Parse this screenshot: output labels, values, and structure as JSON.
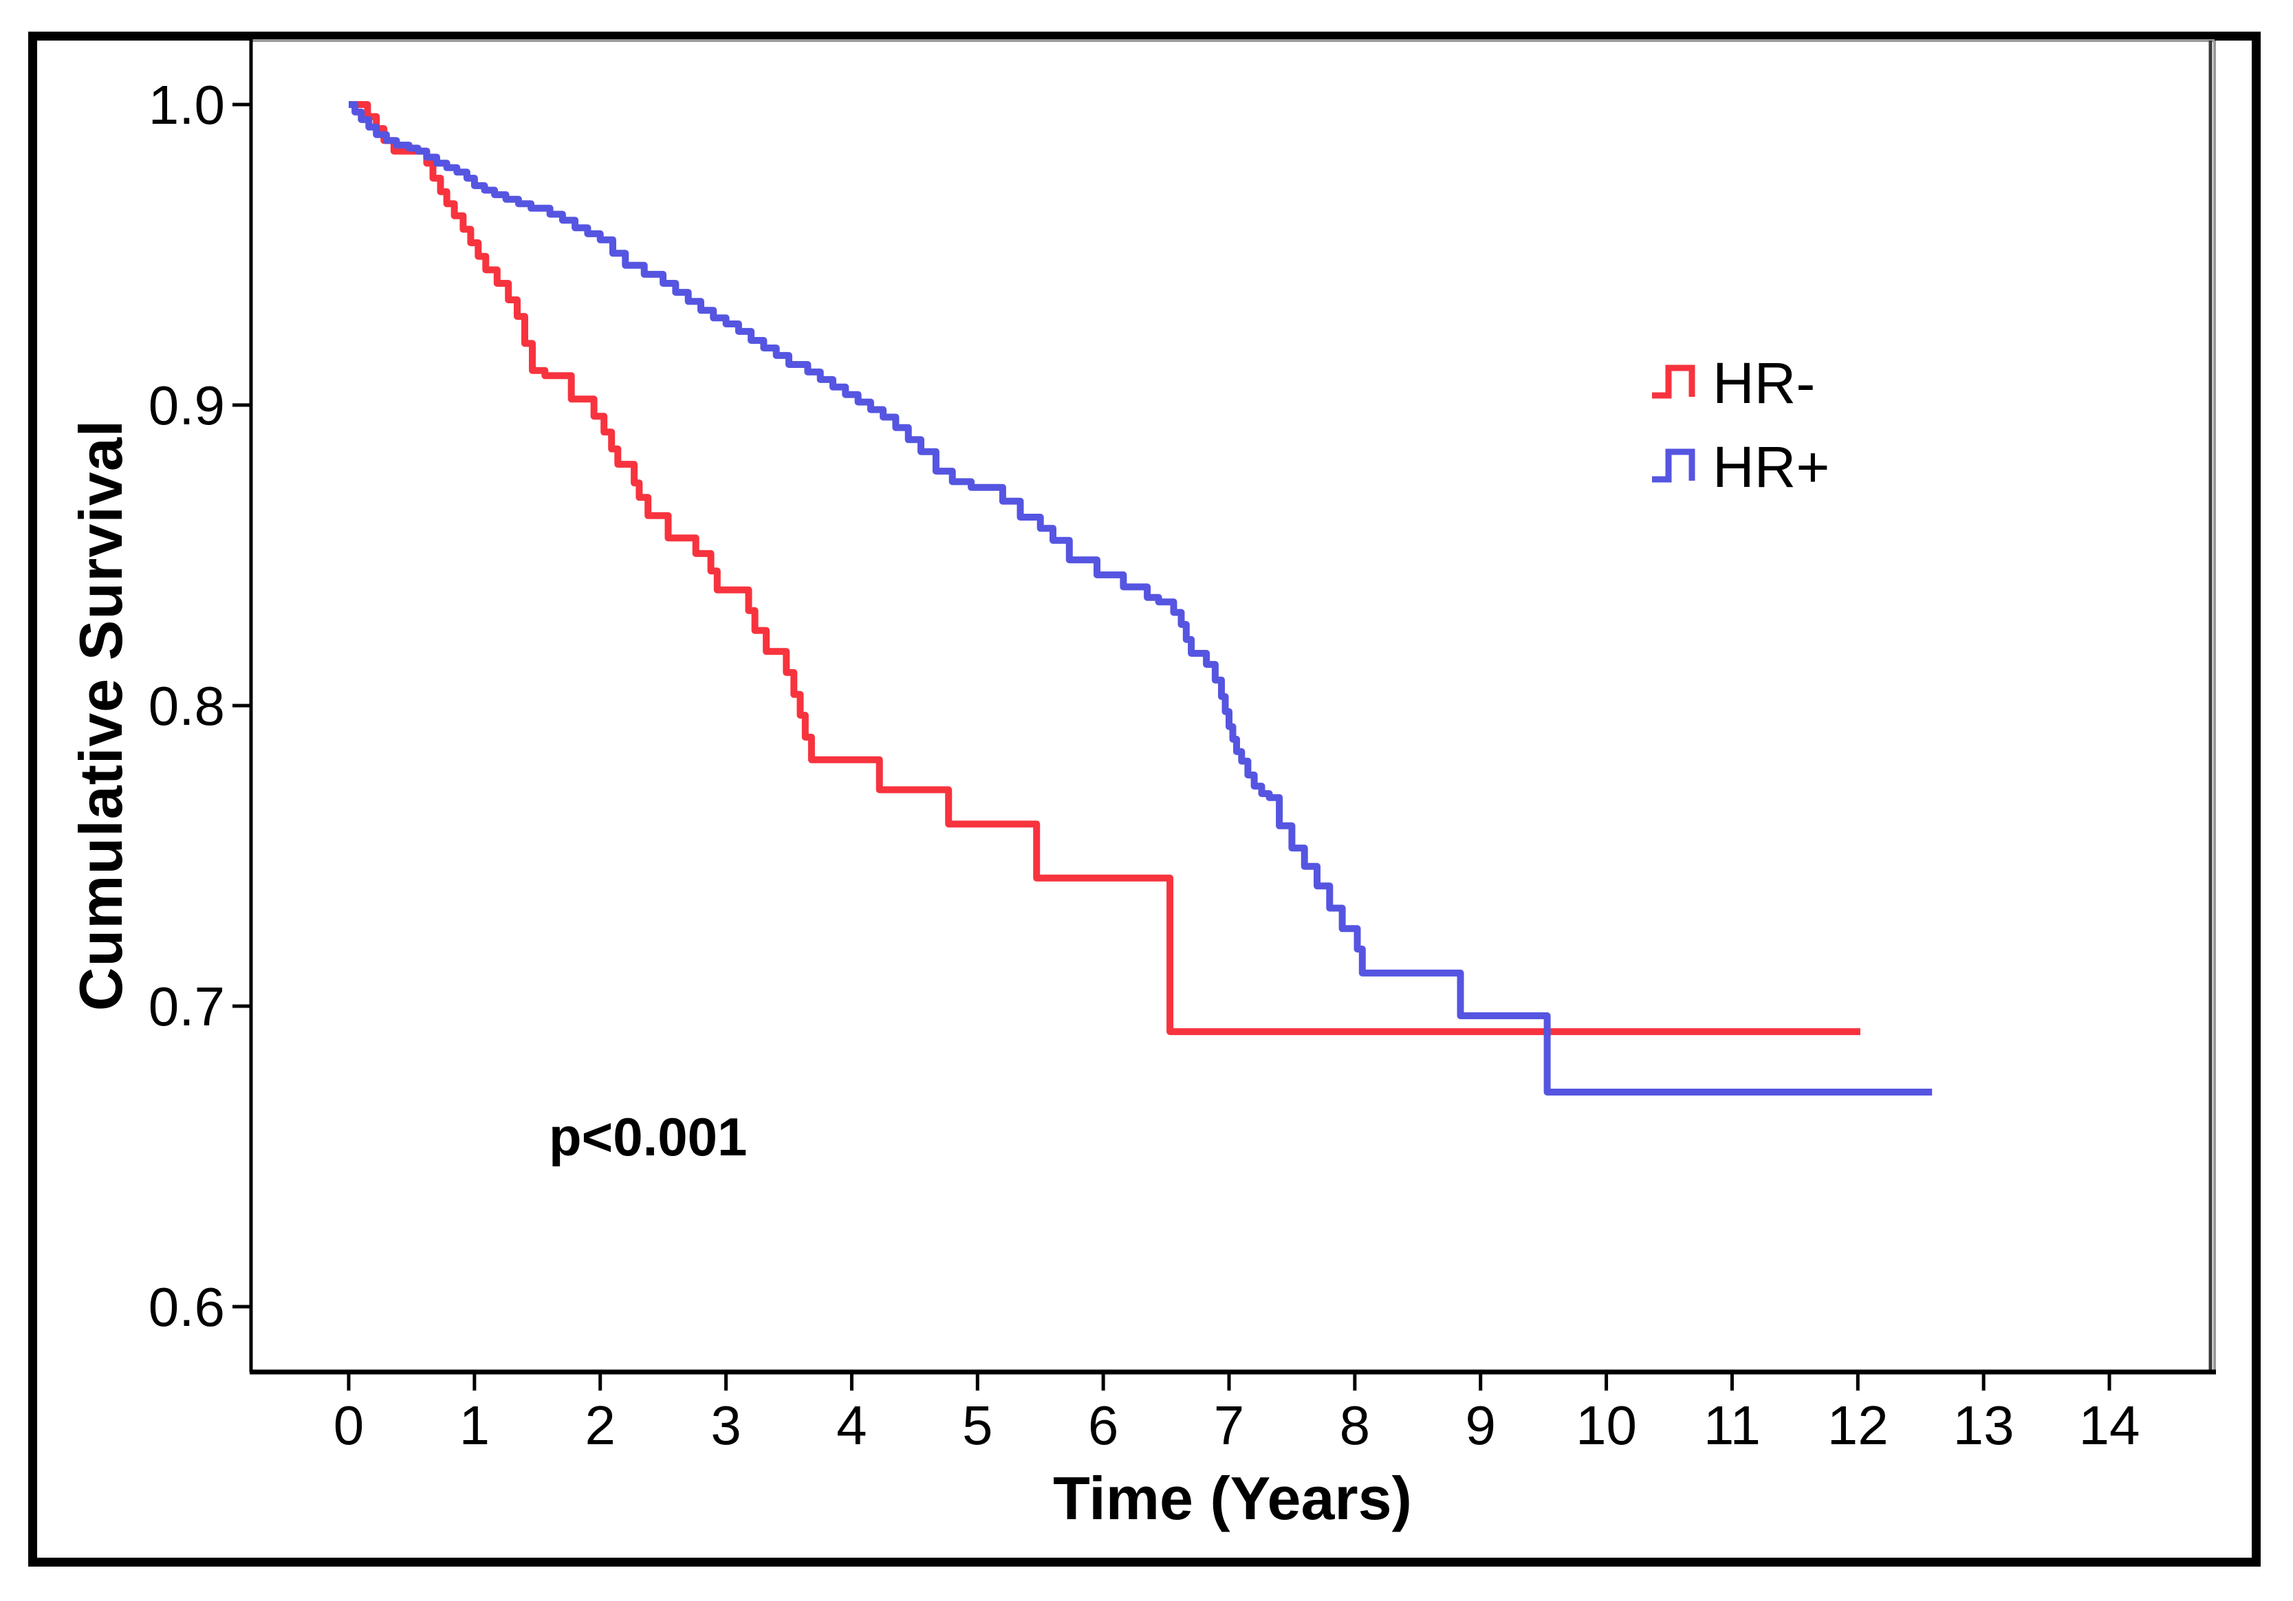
{
  "figure": {
    "background_color": "#ffffff",
    "border_color": "#000000"
  },
  "chart_data": {
    "type": "line",
    "subtype": "kaplan_meier_step",
    "title": "",
    "xlabel": "Time (Years)",
    "ylabel": "Cumulative Survival",
    "annotation": "p<0.001",
    "grid": false,
    "xlim": [
      -0.78,
      14.85
    ],
    "ylim": [
      0.578,
      1.022
    ],
    "x_ticks": [
      "0",
      "1",
      "2",
      "3",
      "4",
      "5",
      "6",
      "7",
      "8",
      "9",
      "10",
      "11",
      "12",
      "13",
      "14"
    ],
    "x_tick_values": [
      0,
      1,
      2,
      3,
      4,
      5,
      6,
      7,
      8,
      9,
      10,
      11,
      12,
      13,
      14
    ],
    "y_ticks": [
      "1.0",
      "0.9",
      "0.8",
      "0.7",
      "0.6"
    ],
    "y_tick_values": [
      1.0,
      0.9,
      0.8,
      0.7,
      0.6
    ],
    "axis_color": "#000000",
    "frame_top_color": "#999999",
    "frame_right_color": "#3a3a3a",
    "legend": {
      "position": "upper right",
      "entries": [
        {
          "label": "HR-",
          "color": "#F7333E"
        },
        {
          "label": "HR+",
          "color": "#5555E1"
        }
      ]
    },
    "series": [
      {
        "name": "HR-",
        "color": "#F7333E",
        "points": [
          [
            0,
            1.0
          ],
          [
            0.15,
            0.996
          ],
          [
            0.22,
            0.992
          ],
          [
            0.28,
            0.988
          ],
          [
            0.36,
            0.9845
          ],
          [
            0.62,
            0.9805
          ],
          [
            0.67,
            0.9755
          ],
          [
            0.73,
            0.971
          ],
          [
            0.78,
            0.967
          ],
          [
            0.84,
            0.963
          ],
          [
            0.91,
            0.9585
          ],
          [
            0.97,
            0.954
          ],
          [
            1.03,
            0.9495
          ],
          [
            1.09,
            0.945
          ],
          [
            1.18,
            0.9405
          ],
          [
            1.27,
            0.935
          ],
          [
            1.34,
            0.9295
          ],
          [
            1.4,
            0.9205
          ],
          [
            1.46,
            0.9115
          ],
          [
            1.56,
            0.9098
          ],
          [
            1.77,
            0.902
          ],
          [
            1.95,
            0.8963
          ],
          [
            2.03,
            0.891
          ],
          [
            2.09,
            0.8854
          ],
          [
            2.14,
            0.8803
          ],
          [
            2.27,
            0.8741
          ],
          [
            2.31,
            0.8693
          ],
          [
            2.38,
            0.8632
          ],
          [
            2.54,
            0.8558
          ],
          [
            2.76,
            0.8506
          ],
          [
            2.88,
            0.8448
          ],
          [
            2.93,
            0.8385
          ],
          [
            3.18,
            0.8316
          ],
          [
            3.23,
            0.825
          ],
          [
            3.32,
            0.818
          ],
          [
            3.48,
            0.811
          ],
          [
            3.54,
            0.8037
          ],
          [
            3.59,
            0.7968
          ],
          [
            3.63,
            0.7895
          ],
          [
            3.68,
            0.782
          ],
          [
            4.22,
            0.772
          ],
          [
            4.77,
            0.7606
          ],
          [
            5.47,
            0.7426
          ],
          [
            6.53,
            0.6915
          ],
          [
            12.02,
            0.6915
          ]
        ]
      },
      {
        "name": "HR+",
        "color": "#5555E1",
        "points": [
          [
            0,
            1.0
          ],
          [
            0.05,
            0.9975
          ],
          [
            0.1,
            0.995
          ],
          [
            0.16,
            0.9925
          ],
          [
            0.22,
            0.99
          ],
          [
            0.3,
            0.988
          ],
          [
            0.38,
            0.9865
          ],
          [
            0.48,
            0.9855
          ],
          [
            0.55,
            0.9845
          ],
          [
            0.62,
            0.9825
          ],
          [
            0.7,
            0.9805
          ],
          [
            0.78,
            0.979
          ],
          [
            0.86,
            0.9775
          ],
          [
            0.94,
            0.9755
          ],
          [
            1.0,
            0.973
          ],
          [
            1.08,
            0.9715
          ],
          [
            1.16,
            0.97
          ],
          [
            1.25,
            0.9685
          ],
          [
            1.35,
            0.967
          ],
          [
            1.45,
            0.9655
          ],
          [
            1.6,
            0.9635
          ],
          [
            1.7,
            0.9615
          ],
          [
            1.8,
            0.959
          ],
          [
            1.9,
            0.957
          ],
          [
            2.0,
            0.955
          ],
          [
            2.1,
            0.9505
          ],
          [
            2.2,
            0.9465
          ],
          [
            2.35,
            0.9435
          ],
          [
            2.5,
            0.9405
          ],
          [
            2.6,
            0.9375
          ],
          [
            2.7,
            0.9345
          ],
          [
            2.8,
            0.9315
          ],
          [
            2.9,
            0.929
          ],
          [
            3.0,
            0.927
          ],
          [
            3.1,
            0.9245
          ],
          [
            3.2,
            0.9215
          ],
          [
            3.3,
            0.919
          ],
          [
            3.4,
            0.9165
          ],
          [
            3.5,
            0.9135
          ],
          [
            3.65,
            0.911
          ],
          [
            3.75,
            0.9085
          ],
          [
            3.85,
            0.906
          ],
          [
            3.95,
            0.9035
          ],
          [
            4.05,
            0.901
          ],
          [
            4.15,
            0.8985
          ],
          [
            4.25,
            0.896
          ],
          [
            4.35,
            0.8925
          ],
          [
            4.45,
            0.8885
          ],
          [
            4.55,
            0.8845
          ],
          [
            4.67,
            0.878
          ],
          [
            4.8,
            0.8745
          ],
          [
            4.95,
            0.8726
          ],
          [
            5.2,
            0.868
          ],
          [
            5.34,
            0.8627
          ],
          [
            5.5,
            0.859
          ],
          [
            5.6,
            0.855
          ],
          [
            5.73,
            0.8485
          ],
          [
            5.95,
            0.8435
          ],
          [
            6.16,
            0.8395
          ],
          [
            6.35,
            0.836
          ],
          [
            6.44,
            0.8345
          ],
          [
            6.56,
            0.831
          ],
          [
            6.62,
            0.827
          ],
          [
            6.66,
            0.822
          ],
          [
            6.7,
            0.8174
          ],
          [
            6.82,
            0.8137
          ],
          [
            6.89,
            0.8085
          ],
          [
            6.94,
            0.803
          ],
          [
            6.97,
            0.798
          ],
          [
            7.0,
            0.793
          ],
          [
            7.03,
            0.7888
          ],
          [
            7.06,
            0.7847
          ],
          [
            7.1,
            0.7815
          ],
          [
            7.15,
            0.7769
          ],
          [
            7.2,
            0.7732
          ],
          [
            7.26,
            0.7707
          ],
          [
            7.32,
            0.7694
          ],
          [
            7.4,
            0.76
          ],
          [
            7.5,
            0.7526
          ],
          [
            7.6,
            0.7465
          ],
          [
            7.7,
            0.74
          ],
          [
            7.8,
            0.7326
          ],
          [
            7.9,
            0.7258
          ],
          [
            8.02,
            0.719
          ],
          [
            8.06,
            0.711
          ],
          [
            8.84,
            0.6968
          ],
          [
            9.53,
            0.6714
          ],
          [
            12.59,
            0.6714
          ]
        ]
      }
    ]
  }
}
